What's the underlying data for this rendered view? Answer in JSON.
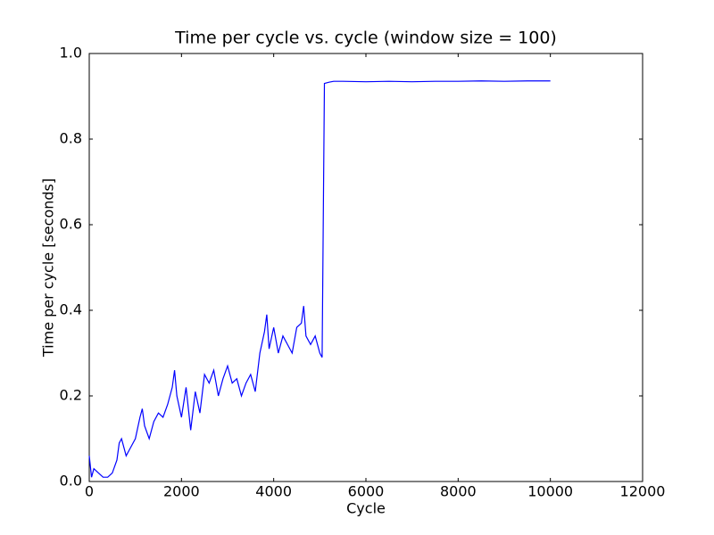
{
  "chart_data": {
    "type": "line",
    "title": "Time per cycle vs. cycle (window size = 100)",
    "x_label": "Cycle",
    "y_label": "Time per cycle [seconds]",
    "x": [
      0,
      50,
      100,
      200,
      300,
      400,
      500,
      600,
      650,
      700,
      800,
      900,
      1000,
      1100,
      1150,
      1200,
      1300,
      1400,
      1500,
      1600,
      1700,
      1800,
      1850,
      1900,
      2000,
      2100,
      2200,
      2300,
      2400,
      2500,
      2600,
      2700,
      2800,
      2900,
      3000,
      3100,
      3200,
      3300,
      3400,
      3500,
      3600,
      3700,
      3800,
      3850,
      3900,
      4000,
      4100,
      4200,
      4300,
      4400,
      4500,
      4600,
      4650,
      4700,
      4800,
      4900,
      5000,
      5050,
      5100,
      5200,
      5300,
      5500,
      6000,
      6500,
      7000,
      7500,
      8000,
      8500,
      9000,
      9500,
      10000
    ],
    "series": [
      {
        "name": "Time per cycle",
        "color": "#0000ff",
        "values": [
          0.06,
          0.01,
          0.03,
          0.02,
          0.01,
          0.01,
          0.02,
          0.05,
          0.09,
          0.1,
          0.06,
          0.08,
          0.1,
          0.15,
          0.17,
          0.13,
          0.1,
          0.14,
          0.16,
          0.15,
          0.18,
          0.22,
          0.26,
          0.2,
          0.15,
          0.22,
          0.12,
          0.21,
          0.16,
          0.25,
          0.23,
          0.26,
          0.2,
          0.24,
          0.27,
          0.23,
          0.24,
          0.2,
          0.23,
          0.25,
          0.21,
          0.3,
          0.35,
          0.39,
          0.31,
          0.36,
          0.3,
          0.34,
          0.32,
          0.3,
          0.36,
          0.37,
          0.41,
          0.34,
          0.32,
          0.34,
          0.3,
          0.29,
          0.93,
          0.933,
          0.935,
          0.935,
          0.934,
          0.935,
          0.934,
          0.935,
          0.935,
          0.936,
          0.935,
          0.936,
          0.936
        ]
      }
    ],
    "xlim": [
      0,
      12000
    ],
    "ylim": [
      0,
      1.0
    ],
    "xticks": [
      0,
      2000,
      4000,
      6000,
      8000,
      10000,
      12000
    ],
    "yticks": [
      {
        "value": 0,
        "label": "0.0"
      },
      0.2,
      0.4,
      0.6,
      0.8,
      {
        "value": 1.0,
        "label": "1.0"
      }
    ]
  }
}
